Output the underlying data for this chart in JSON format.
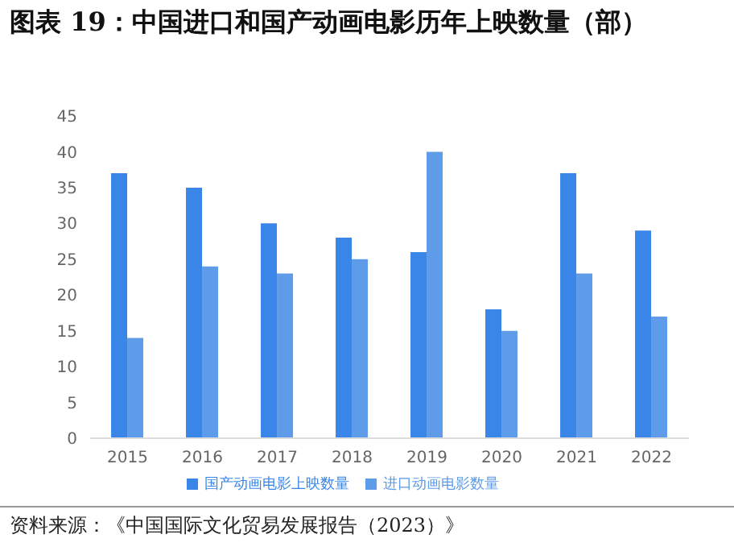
{
  "chart_data": {
    "type": "bar",
    "title": "图表 19：中国进口和国产动画电影历年上映数量（部）",
    "categories": [
      "2015",
      "2016",
      "2017",
      "2018",
      "2019",
      "2020",
      "2021",
      "2022"
    ],
    "series": [
      {
        "name": "国产动画电影上映数量",
        "color": "#3a86e8",
        "values": [
          37,
          35,
          30,
          28,
          26,
          18,
          37,
          29
        ]
      },
      {
        "name": "进口动画电影数量",
        "color": "#5e9be8",
        "values": [
          14,
          24,
          23,
          25,
          40,
          15,
          23,
          17
        ]
      }
    ],
    "ylim": [
      0,
      45
    ],
    "yticks": [
      0,
      5,
      10,
      15,
      20,
      25,
      30,
      35,
      40,
      45
    ],
    "grid": false,
    "legend": "bottom",
    "annotations": [
      "资料来源：《中国国际文化贸易发展报告（2023）》"
    ]
  }
}
